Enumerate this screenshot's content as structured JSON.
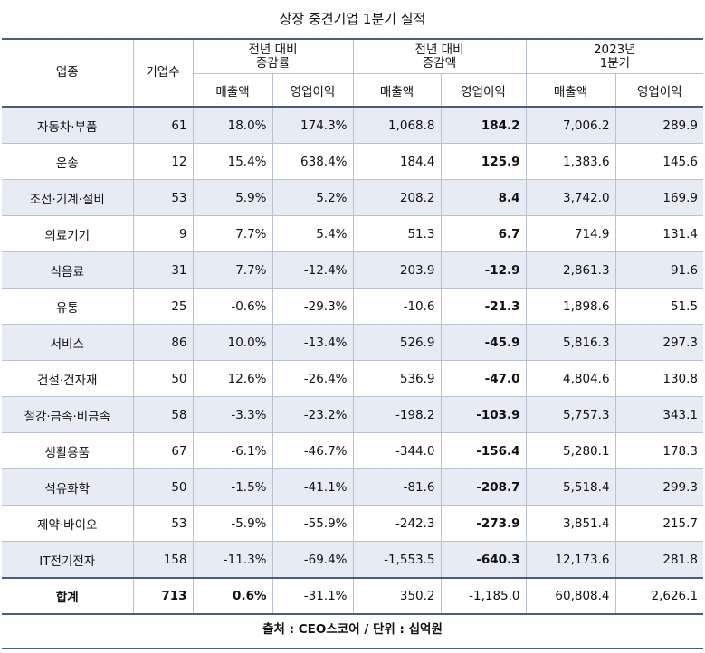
{
  "title": "상장 중견기업 1분기 실적",
  "header": {
    "industry": "업종",
    "count": "기업수",
    "group1": "전년 대비\n증감률",
    "group2": "전년 대비\n증감액",
    "group3": "2023년\n1분기",
    "sales": "매출액",
    "op": "영업이익"
  },
  "rows": [
    {
      "industry": "자동차·부품",
      "count": "61",
      "sales_rate": "18.0%",
      "op_rate": "174.3%",
      "sales_amt": "1,068.8",
      "op_amt": "184.2",
      "sales_23": "7,006.2",
      "op_23": "289.9"
    },
    {
      "industry": "운송",
      "count": "12",
      "sales_rate": "15.4%",
      "op_rate": "638.4%",
      "sales_amt": "184.4",
      "op_amt": "125.9",
      "sales_23": "1,383.6",
      "op_23": "145.6"
    },
    {
      "industry": "조선·기계·설비",
      "count": "53",
      "sales_rate": "5.9%",
      "op_rate": "5.2%",
      "sales_amt": "208.2",
      "op_amt": "8.4",
      "sales_23": "3,742.0",
      "op_23": "169.9"
    },
    {
      "industry": "의료기기",
      "count": "9",
      "sales_rate": "7.7%",
      "op_rate": "5.4%",
      "sales_amt": "51.3",
      "op_amt": "6.7",
      "sales_23": "714.9",
      "op_23": "131.4"
    },
    {
      "industry": "식음료",
      "count": "31",
      "sales_rate": "7.7%",
      "op_rate": "-12.4%",
      "sales_amt": "203.9",
      "op_amt": "-12.9",
      "sales_23": "2,861.3",
      "op_23": "91.6"
    },
    {
      "industry": "유통",
      "count": "25",
      "sales_rate": "-0.6%",
      "op_rate": "-29.3%",
      "sales_amt": "-10.6",
      "op_amt": "-21.3",
      "sales_23": "1,898.6",
      "op_23": "51.5"
    },
    {
      "industry": "서비스",
      "count": "86",
      "sales_rate": "10.0%",
      "op_rate": "-13.4%",
      "sales_amt": "526.9",
      "op_amt": "-45.9",
      "sales_23": "5,816.3",
      "op_23": "297.3"
    },
    {
      "industry": "건설·건자재",
      "count": "50",
      "sales_rate": "12.6%",
      "op_rate": "-26.4%",
      "sales_amt": "536.9",
      "op_amt": "-47.0",
      "sales_23": "4,804.6",
      "op_23": "130.8"
    },
    {
      "industry": "철강·금속·비금속",
      "count": "58",
      "sales_rate": "-3.3%",
      "op_rate": "-23.2%",
      "sales_amt": "-198.2",
      "op_amt": "-103.9",
      "sales_23": "5,757.3",
      "op_23": "343.1"
    },
    {
      "industry": "생활용품",
      "count": "67",
      "sales_rate": "-6.1%",
      "op_rate": "-46.7%",
      "sales_amt": "-344.0",
      "op_amt": "-156.4",
      "sales_23": "5,280.1",
      "op_23": "178.3"
    },
    {
      "industry": "석유화학",
      "count": "50",
      "sales_rate": "-1.5%",
      "op_rate": "-41.1%",
      "sales_amt": "-81.6",
      "op_amt": "-208.7",
      "sales_23": "5,518.4",
      "op_23": "299.3"
    },
    {
      "industry": "제약·바이오",
      "count": "53",
      "sales_rate": "-5.9%",
      "op_rate": "-55.9%",
      "sales_amt": "-242.3",
      "op_amt": "-273.9",
      "sales_23": "3,851.4",
      "op_23": "215.7"
    },
    {
      "industry": "IT전기전자",
      "count": "158",
      "sales_rate": "-11.3%",
      "op_rate": "-69.4%",
      "sales_amt": "-1,553.5",
      "op_amt": "-640.3",
      "sales_23": "12,173.6",
      "op_23": "281.8"
    }
  ],
  "total": {
    "industry": "합계",
    "count": "713",
    "sales_rate": "0.6%",
    "op_rate": "-31.1%",
    "sales_amt": "350.2",
    "op_amt": "-1,185.0",
    "sales_23": "60,808.4",
    "op_23": "2,626.1"
  },
  "footer": "출처 : CEO스코어 / 단위 : 십억원"
}
